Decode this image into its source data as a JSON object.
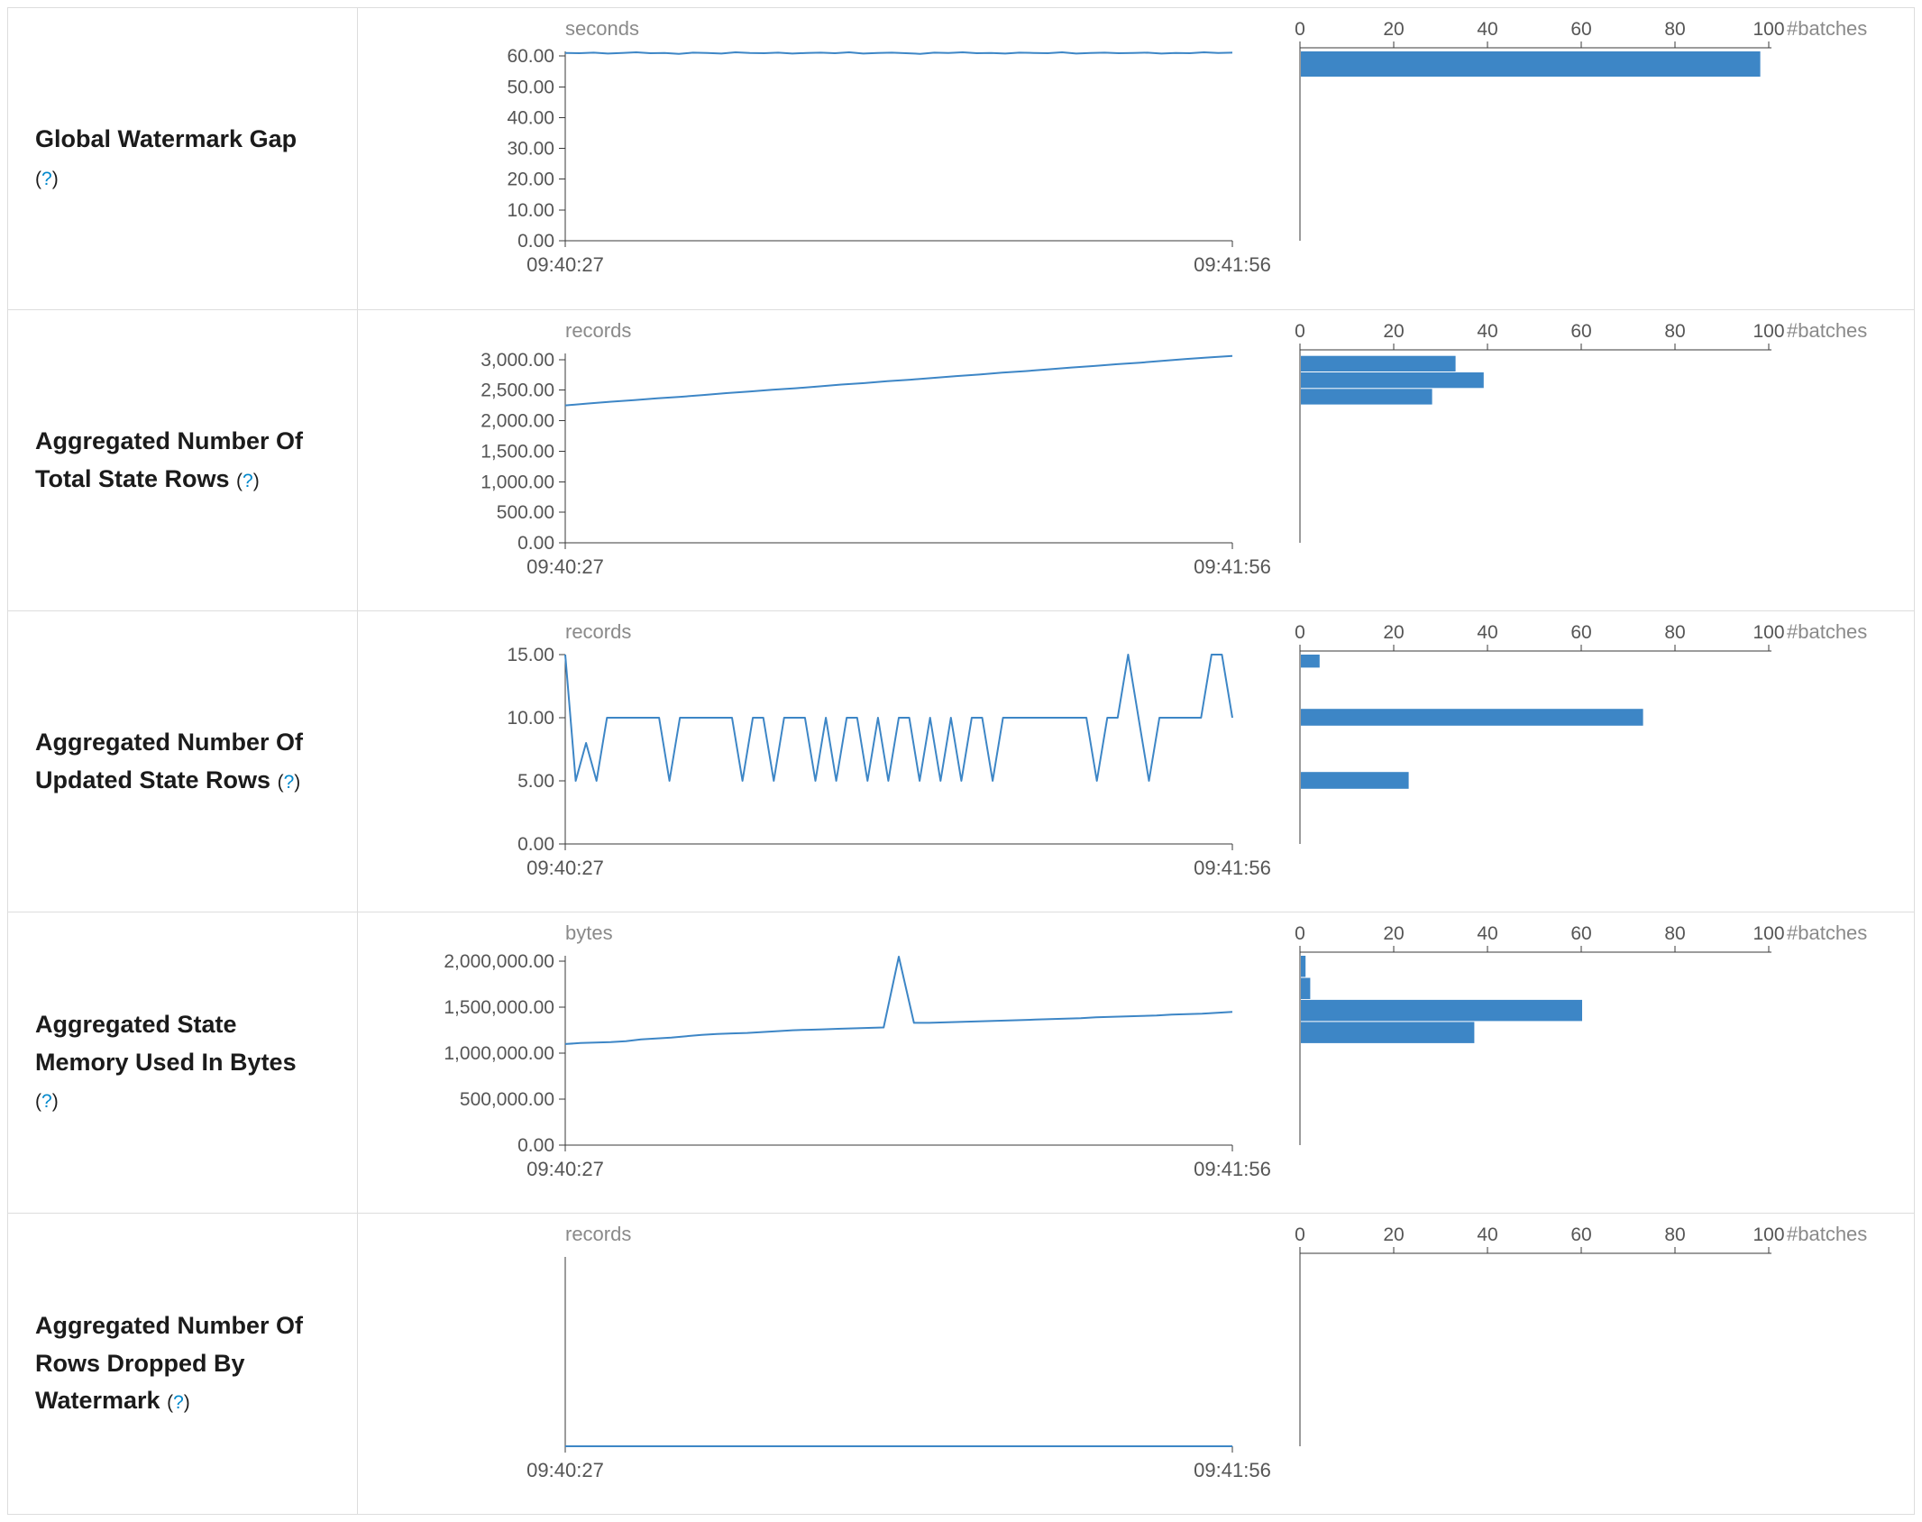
{
  "style": {
    "accent": "#3d86c6",
    "axis_line": "#3a3a3a",
    "tick_text": "#555555",
    "unit_text": "#8a8a8a",
    "border": "#dddddd",
    "label_color": "#1b1b1b",
    "link_color": "#0088cc"
  },
  "help": {
    "open": "(",
    "symbol": "?",
    "close": ")"
  },
  "time_axis": {
    "start": "09:40:27",
    "end": "09:41:56"
  },
  "batch_axis": {
    "label": "#batches",
    "tick_values": [
      0,
      20,
      40,
      60,
      80,
      100
    ],
    "tick_labels": [
      "0",
      "20",
      "40",
      "60",
      "80",
      "100"
    ],
    "max": 100
  },
  "chart_data": [
    {
      "name": "Global Watermark Gap",
      "timeline": {
        "type": "line",
        "unit": "seconds",
        "ylim": [
          0,
          61.5
        ],
        "yticks": [
          0,
          10,
          20,
          30,
          40,
          50,
          60
        ],
        "ytick_labels": [
          "0.00",
          "10.00",
          "20.00",
          "30.00",
          "40.00",
          "50.00",
          "60.00"
        ],
        "x_labels": [
          "09:40:27",
          "09:41:56"
        ],
        "values": [
          61.0,
          60.9,
          61.1,
          60.8,
          61.0,
          61.2,
          60.9,
          61.0,
          60.7,
          61.1,
          61.0,
          60.8,
          61.2,
          61.0,
          60.9,
          61.1,
          60.8,
          61.0,
          61.1,
          60.9,
          61.2,
          60.8,
          61.0,
          61.1,
          60.9,
          60.7,
          61.1,
          61.0,
          61.2,
          60.9,
          61.0,
          60.8,
          61.1,
          61.0,
          60.9,
          61.2,
          60.8,
          61.0,
          61.1,
          60.9,
          61.0,
          61.1,
          60.8,
          61.0,
          60.9,
          61.2,
          61.0,
          61.1
        ]
      },
      "histogram": {
        "type": "bar",
        "xlabel": "#batches",
        "xlim": [
          0,
          100
        ],
        "buckets": [
          {
            "range": [
              53.0,
              61.5
            ],
            "count": 98
          }
        ]
      }
    },
    {
      "name": "Aggregated Number Of Total State Rows",
      "timeline": {
        "type": "line",
        "unit": "records",
        "ylim": [
          0,
          3100
        ],
        "yticks": [
          0,
          500,
          1000,
          1500,
          2000,
          2500,
          3000
        ],
        "ytick_labels": [
          "0.00",
          "500.00",
          "1,000.00",
          "1,500.00",
          "2,000.00",
          "2,500.00",
          "3,000.00"
        ],
        "x_labels": [
          "09:40:27",
          "09:41:56"
        ],
        "values": [
          2250,
          2280,
          2310,
          2335,
          2365,
          2390,
          2420,
          2450,
          2475,
          2505,
          2530,
          2560,
          2590,
          2615,
          2645,
          2670,
          2700,
          2730,
          2755,
          2785,
          2810,
          2840,
          2870,
          2895,
          2925,
          2950,
          2980,
          3010,
          3035,
          3060
        ]
      },
      "histogram": {
        "type": "bar",
        "xlabel": "#batches",
        "xlim": [
          0,
          100
        ],
        "buckets": [
          {
            "range": [
              2790,
              3060
            ],
            "count": 33
          },
          {
            "range": [
              2520,
              2790
            ],
            "count": 39
          },
          {
            "range": [
              2250,
              2520
            ],
            "count": 28
          }
        ]
      }
    },
    {
      "name": "Aggregated Number Of Updated State Rows",
      "timeline": {
        "type": "line",
        "unit": "records",
        "ylim": [
          0,
          15
        ],
        "yticks": [
          0,
          5,
          10,
          15
        ],
        "ytick_labels": [
          "0.00",
          "5.00",
          "10.00",
          "15.00"
        ],
        "x_labels": [
          "09:40:27",
          "09:41:56"
        ],
        "values": [
          15,
          5,
          8,
          5,
          10,
          10,
          10,
          10,
          10,
          10,
          5,
          10,
          10,
          10,
          10,
          10,
          10,
          5,
          10,
          10,
          5,
          10,
          10,
          10,
          5,
          10,
          5,
          10,
          10,
          5,
          10,
          5,
          10,
          10,
          5,
          10,
          5,
          10,
          5,
          10,
          10,
          5,
          10,
          10,
          10,
          10,
          10,
          10,
          10,
          10,
          10,
          5,
          10,
          10,
          15,
          10,
          5,
          10,
          10,
          10,
          10,
          10,
          15,
          15,
          10
        ]
      },
      "histogram": {
        "type": "bar",
        "xlabel": "#batches",
        "xlim": [
          0,
          100
        ],
        "buckets": [
          {
            "range": [
              13.9,
              15.0
            ],
            "count": 4
          },
          {
            "range": [
              9.3,
              10.7
            ],
            "count": 73
          },
          {
            "range": [
              4.3,
              5.7
            ],
            "count": 23
          }
        ]
      }
    },
    {
      "name": "Aggregated State Memory Used In Bytes",
      "timeline": {
        "type": "line",
        "unit": "bytes",
        "ylim": [
          0,
          2060000
        ],
        "yticks": [
          0,
          500000,
          1000000,
          1500000,
          2000000
        ],
        "ytick_labels": [
          "0.00",
          "500,000.00",
          "1,000,000.00",
          "1,500,000.00",
          "2,000,000.00"
        ],
        "x_labels": [
          "09:40:27",
          "09:41:56"
        ],
        "values": [
          1100000,
          1110000,
          1115000,
          1120000,
          1130000,
          1150000,
          1160000,
          1170000,
          1185000,
          1200000,
          1210000,
          1215000,
          1220000,
          1230000,
          1240000,
          1250000,
          1255000,
          1260000,
          1265000,
          1270000,
          1275000,
          1280000,
          2050000,
          1330000,
          1330000,
          1335000,
          1340000,
          1345000,
          1350000,
          1355000,
          1360000,
          1365000,
          1370000,
          1375000,
          1380000,
          1390000,
          1395000,
          1400000,
          1405000,
          1410000,
          1420000,
          1425000,
          1430000,
          1440000,
          1450000
        ]
      },
      "histogram": {
        "type": "bar",
        "xlabel": "#batches",
        "xlim": [
          0,
          100
        ],
        "buckets": [
          {
            "range": [
              1820000,
              2060000
            ],
            "count": 1
          },
          {
            "range": [
              1580000,
              1820000
            ],
            "count": 2
          },
          {
            "range": [
              1340000,
              1580000
            ],
            "count": 60
          },
          {
            "range": [
              1100000,
              1340000
            ],
            "count": 37
          }
        ]
      }
    },
    {
      "name": "Aggregated Number Of Rows Dropped By Watermark",
      "timeline": {
        "type": "line",
        "unit": "records",
        "ylim": [
          0,
          1
        ],
        "yticks": [],
        "ytick_labels": [],
        "x_labels": [
          "09:40:27",
          "09:41:56"
        ],
        "values": [
          0,
          0,
          0,
          0,
          0,
          0,
          0,
          0,
          0,
          0,
          0,
          0
        ]
      },
      "histogram": {
        "type": "bar",
        "xlabel": "#batches",
        "xlim": [
          0,
          100
        ],
        "buckets": []
      }
    }
  ]
}
